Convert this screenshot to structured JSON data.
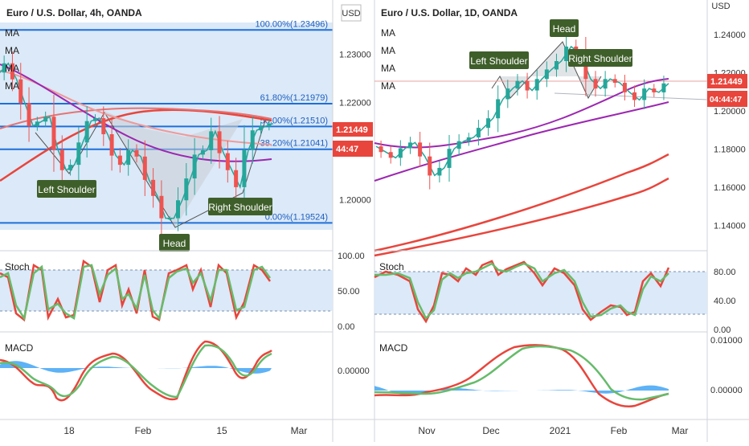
{
  "chart_data": [
    {
      "type": "candlestick",
      "title": "Euro / U.S. Dollar, 4h, OANDA",
      "currency_label": "USD",
      "ma_labels": [
        "MA",
        "MA",
        "MA",
        "MA"
      ],
      "ylim": [
        1.1915,
        1.2365
      ],
      "y_ticks": [
        "1.23000",
        "1.22000",
        "1.20000"
      ],
      "x_ticks": [
        "18",
        "Feb",
        "15",
        "Mar"
      ],
      "fib_levels": [
        {
          "label": "100.00%(1.23496)",
          "value": 1.23496
        },
        {
          "label": "61.80%(1.21979)",
          "value": 1.21979
        },
        {
          "label": "50.00%(1.21510)",
          "value": 1.2151
        },
        {
          "label": "38.20%(1.21041)",
          "value": 1.21041
        },
        {
          "label": "0.00%(1.19524)",
          "value": 1.19524
        }
      ],
      "price_badge": {
        "value": "1.21449",
        "countdown": "44:47"
      },
      "annotations": [
        "Left Shoulder",
        "Head",
        "Right Shoulder"
      ],
      "close_path": [
        1.2262,
        1.2281,
        1.2248,
        1.2199,
        1.2152,
        1.2161,
        1.2171,
        1.2103,
        1.2061,
        1.2072,
        1.2118,
        1.2162,
        1.2168,
        1.2135,
        1.2091,
        1.2072,
        1.2102,
        1.2089,
        1.2041,
        1.2008,
        1.1962,
        1.1962,
        1.1999,
        1.2044,
        1.2093,
        1.2102,
        1.2141,
        1.2096,
        1.2061,
        1.2026,
        1.2103,
        1.2143,
        1.2151,
        1.2157
      ],
      "stoch": {
        "levels": [
          "100.00",
          "50.00",
          "0.00"
        ],
        "band": [
          20,
          80
        ]
      },
      "macd": {
        "levels": [
          "0.00000"
        ]
      }
    },
    {
      "type": "candlestick",
      "title": "Euro / U.S. Dollar, 1D, OANDA",
      "currency_label": "USD",
      "ma_labels": [
        "MA",
        "MA",
        "MA",
        "MA"
      ],
      "ylim": [
        1.131,
        1.254
      ],
      "y_ticks": [
        "1.24000",
        "1.22000",
        "1.20000",
        "1.18000",
        "1.16000",
        "1.14000"
      ],
      "x_ticks": [
        "Nov",
        "Dec",
        "2021",
        "Feb",
        "Mar"
      ],
      "price_badge": {
        "value": "1.21449",
        "countdown": "04:44:47"
      },
      "annotations": [
        "Left Shoulder",
        "Head",
        "Right Shoulder"
      ],
      "close_path": [
        1.1815,
        1.1785,
        1.1755,
        1.1805,
        1.1835,
        1.1762,
        1.1662,
        1.1702,
        1.1802,
        1.1842,
        1.1862,
        1.1912,
        1.1962,
        1.2062,
        1.2118,
        1.2158,
        1.2108,
        1.2168,
        1.2218,
        1.2262,
        1.2338,
        1.2298,
        1.2168,
        1.2118,
        1.2168,
        1.2148,
        1.2098,
        1.2058,
        1.2118,
        1.2098,
        1.2145
      ],
      "stoch": {
        "levels": [
          "80.00",
          "40.00",
          "0.00"
        ],
        "band": [
          20,
          80
        ]
      },
      "macd": {
        "levels": [
          "0.01000",
          "0.00000"
        ]
      }
    }
  ]
}
